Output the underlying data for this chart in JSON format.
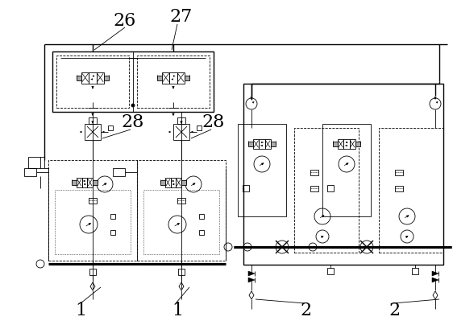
{
  "bg_color": "#ffffff",
  "lc": "#000000",
  "figsize": [
    5.62,
    4.04
  ],
  "dpi": 100,
  "lw_thin": 0.6,
  "lw_med": 1.0,
  "lw_thick": 2.2,
  "label_fs": 16,
  "small_fs": 5
}
